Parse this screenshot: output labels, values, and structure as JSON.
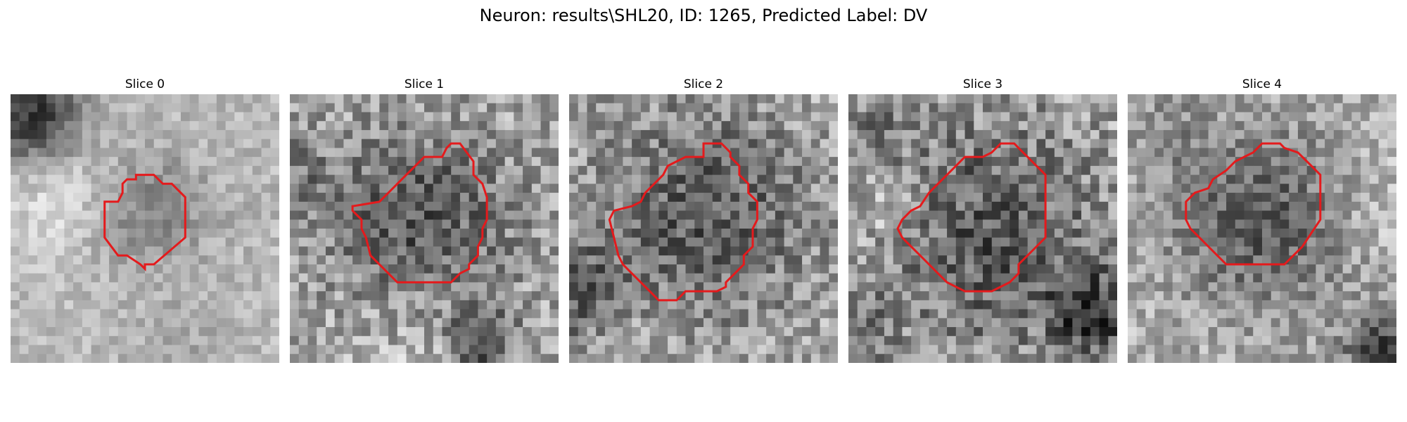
{
  "figure": {
    "title": "Neuron: results\\SHL20, ID: 1265, Predicted Label: DV"
  },
  "panels": [
    {
      "title": "Slice 0"
    },
    {
      "title": "Slice 1"
    },
    {
      "title": "Slice 2"
    },
    {
      "title": "Slice 3"
    },
    {
      "title": "Slice 4"
    }
  ],
  "style": {
    "contour_color": "#e41a1c",
    "colormap": "gray"
  }
}
